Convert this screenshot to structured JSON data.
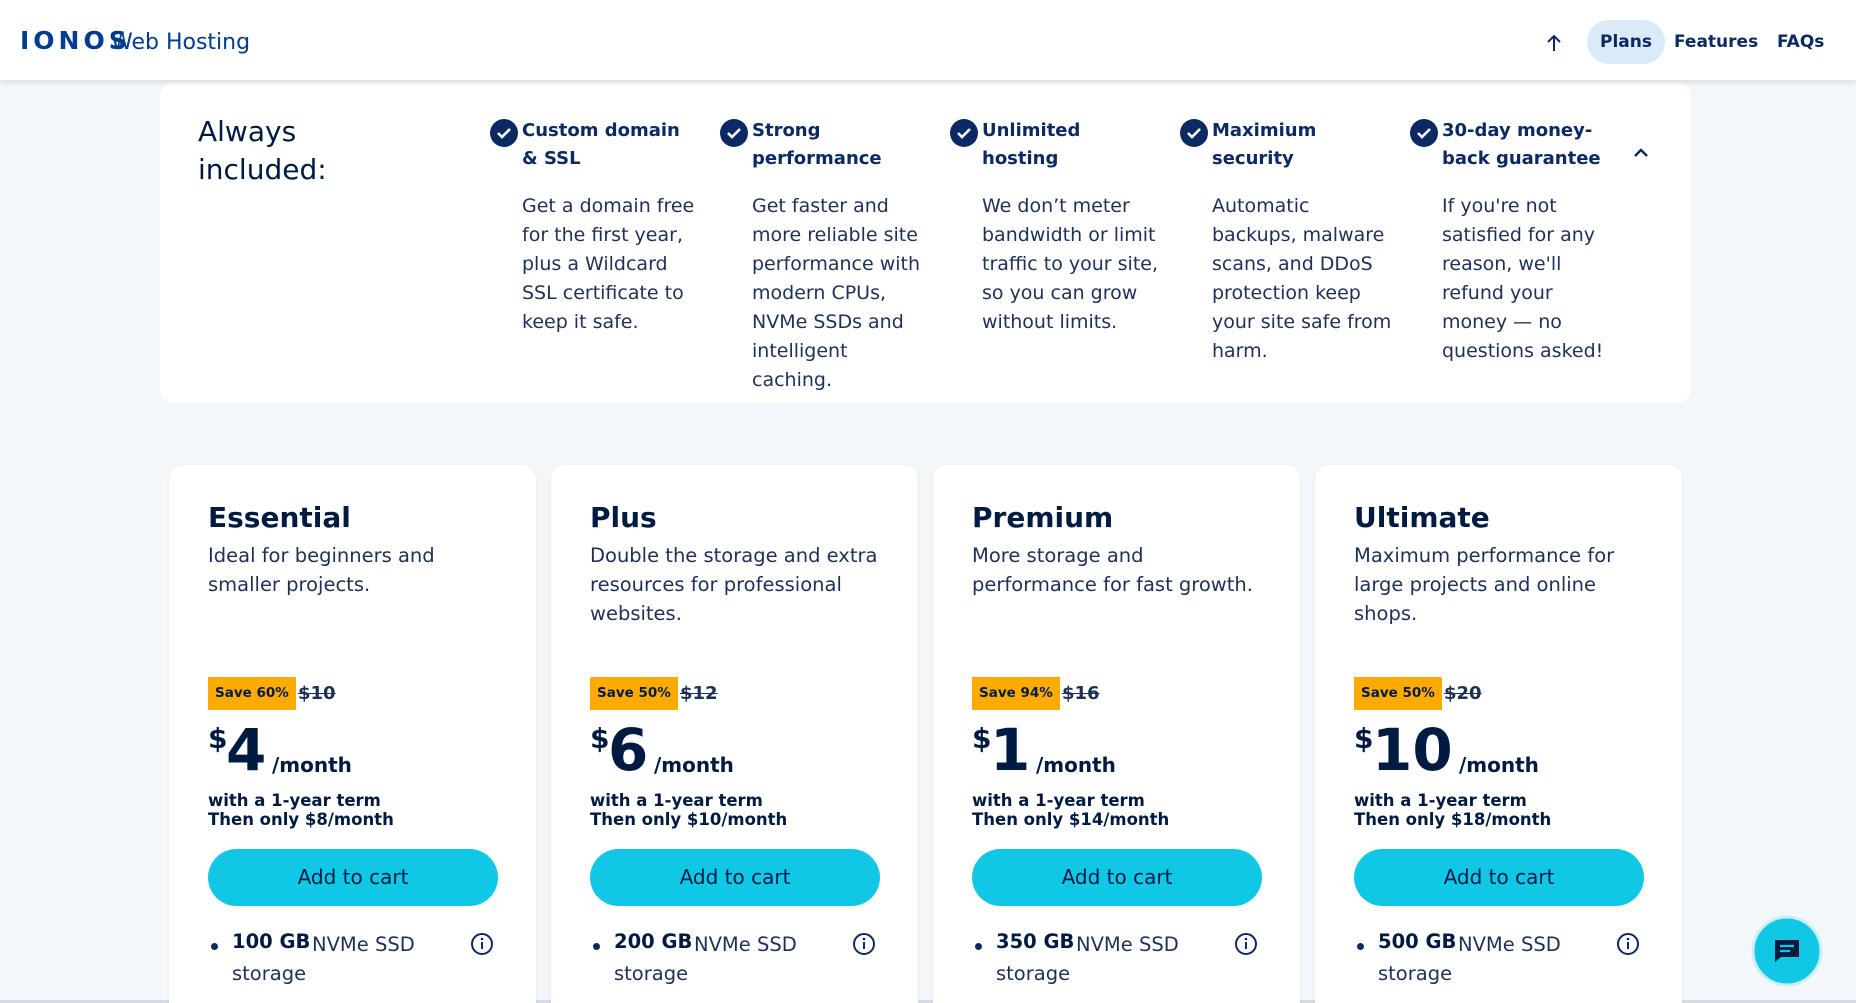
{
  "header": {
    "logo": "IONOS",
    "product": "Web Hosting",
    "nav": [
      "Plans",
      "Features",
      "FAQs"
    ]
  },
  "included": {
    "heading": "Always included:",
    "items": [
      {
        "title": "Custom domain & SSL",
        "text": "Get a domain free for the first year, plus a Wildcard SSL certificate to keep it safe."
      },
      {
        "title": "Strong performance",
        "text": "Get faster and more reliable site performance with modern CPUs, NVMe SSDs and intelligent caching."
      },
      {
        "title": "Unlimited hosting",
        "text": "We don’t meter bandwidth or limit traffic to your site, so you can grow without limits."
      },
      {
        "title": "Maximium security",
        "text": "Automatic backups, malware scans, and DDoS protection keep your site safe from harm."
      },
      {
        "title": "30-day money-back guarantee",
        "text": "If you're not satisfied for any reason, we'll refund your money — no questions asked!"
      }
    ]
  },
  "plans": [
    {
      "name": "Essential",
      "description": "Ideal for beginners and smaller projects.",
      "save": "Save 60%",
      "old_price": "$10",
      "currency": "$",
      "price": "4",
      "period": "/month",
      "term": "with a 1-year term",
      "renewal": "Then only $8/month",
      "button": "Add to cart",
      "feature_bold": "100 GB",
      "feature_text": "NVMe SSD storage"
    },
    {
      "name": "Plus",
      "description": "Double the storage and extra resources for professional websites.",
      "save": "Save 50%",
      "old_price": "$12",
      "currency": "$",
      "price": "6",
      "period": "/month",
      "term": "with a 1-year term",
      "renewal": "Then only $10/month",
      "button": "Add to cart",
      "feature_bold": "200 GB",
      "feature_text": "NVMe SSD storage"
    },
    {
      "name": "Premium",
      "description": "More storage and performance for fast growth.",
      "save": "Save 94%",
      "old_price": "$16",
      "currency": "$",
      "price": "1",
      "period": "/month",
      "term": "with a 1-year term",
      "renewal": "Then only $14/month",
      "button": "Add to cart",
      "feature_bold": "350 GB",
      "feature_text": "NVMe SSD storage"
    },
    {
      "name": "Ultimate",
      "description": "Maximum performance for large projects and online shops.",
      "save": "Save 50%",
      "old_price": "$20",
      "currency": "$",
      "price": "10",
      "period": "/month",
      "term": "with a 1-year term",
      "renewal": "Then only $18/month",
      "button": "Add to cart",
      "feature_bold": "500 GB",
      "feature_text": "NVMe SSD storage"
    }
  ]
}
